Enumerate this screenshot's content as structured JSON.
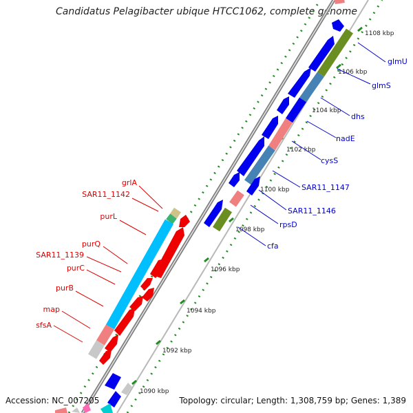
{
  "title": "Candidatus Pelagibacter ubique HTCC1062, complete genome",
  "accession": "Accession: NC_007205",
  "topology": "Topology: circular; Length: 1,308,759 bp; Genes: 1,389",
  "kbp_labels": [
    "1108 kbp",
    "1106 kbp",
    "1104 kbp",
    "1102 kbp",
    "1100 kbp",
    "1098 kbp",
    "1096 kbp",
    "1094 kbp",
    "1092 kbp",
    "1090 kbp"
  ],
  "blue_gene_labels": [
    "glmU",
    "glmS",
    "dhs",
    "nadE",
    "cysS",
    "SAR11_1147",
    "SAR11_1146",
    "rpsD",
    "cfa"
  ],
  "red_gene_labels": [
    "grlA",
    "SAR11_1142",
    "purL",
    "purQ",
    "SAR11_1139",
    "purC",
    "purB",
    "map",
    "sfsA"
  ],
  "colors": {
    "blue_label": "#0000cc",
    "red_label": "#dd0000",
    "gene_blue": "#0000ee",
    "gene_red": "#ee0000",
    "gene_olive": "#6b8e23",
    "gene_steel": "#4682b4",
    "gene_pink": "#f08080",
    "gene_cyan": "#00bfff",
    "gene_gray": "#c8c8c8",
    "gene_tan": "#cfc38a",
    "gene_green": "#3cb371",
    "backbone": "#808080",
    "tick_green": "#228b22"
  }
}
